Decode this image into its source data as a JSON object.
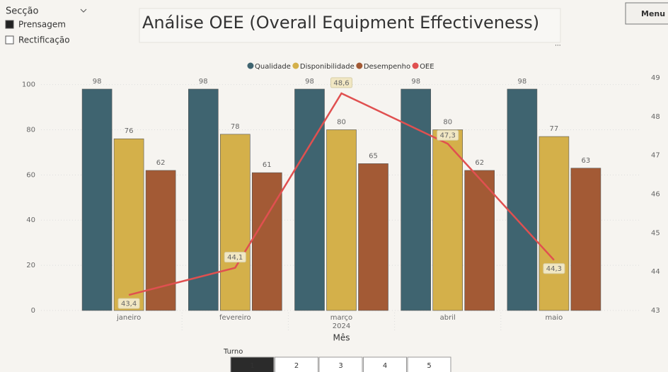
{
  "slicer": {
    "title": "Secção",
    "options": [
      {
        "label": "Prensagem",
        "checked": true
      },
      {
        "label": "Rectificação",
        "checked": false
      }
    ]
  },
  "menu": "Menu",
  "turno": {
    "title": "Turno",
    "options": [
      {
        "label": "1",
        "selected": true
      },
      {
        "label": "2",
        "selected": false
      },
      {
        "label": "3",
        "selected": false
      },
      {
        "label": "4",
        "selected": false
      },
      {
        "label": "5",
        "selected": false
      }
    ]
  },
  "chart_data": {
    "type": "bar",
    "title": "Análise OEE (Overall Equipment Effectiveness)",
    "categories": [
      "janeiro",
      "fevereiro",
      "março",
      "abril",
      "maio"
    ],
    "x_group_label": "2024",
    "xlabel": "Mês",
    "series": [
      {
        "name": "Qualidade",
        "color": "#3f6470",
        "values": [
          98,
          98,
          98,
          98,
          98
        ]
      },
      {
        "name": "Disponibilidade",
        "color": "#d4b04a",
        "values": [
          76,
          78,
          80,
          80,
          77
        ]
      },
      {
        "name": "Desempenho",
        "color": "#a35a35",
        "values": [
          62,
          61,
          65,
          62,
          63
        ]
      },
      {
        "name": "OEE",
        "color": "#e05050",
        "type": "line",
        "axis": "y2",
        "values": [
          43.4,
          44.1,
          48.6,
          47.3,
          44.3
        ],
        "value_labels": [
          "43,4",
          "44,1",
          "48,6",
          "47,3",
          "44,3"
        ]
      }
    ],
    "ylim": [
      0,
      103
    ],
    "yticks": [
      0,
      20,
      40,
      60,
      80,
      100
    ],
    "y2lim": [
      43,
      49
    ],
    "y2ticks": [
      43,
      44,
      45,
      46,
      47,
      48,
      49
    ],
    "grid": true,
    "legend": "top"
  }
}
